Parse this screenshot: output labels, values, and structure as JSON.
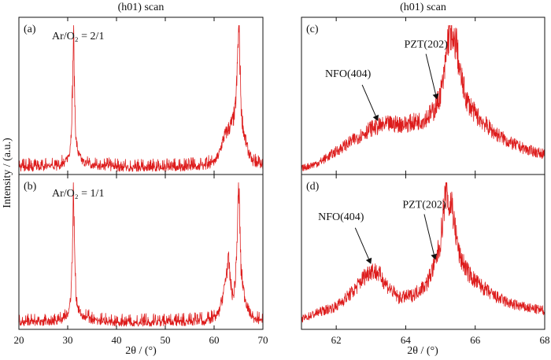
{
  "figure": {
    "ylabel": "Intensity / (a.u.)",
    "xlabel": "2θ / (°)"
  },
  "chart_data": [
    {
      "id": "a",
      "type": "line",
      "panel_label": "(a)",
      "column_title": "(h01) scan",
      "annotation": "Ar/O₂ = 2/1",
      "xlabel": "2θ / (°)",
      "ylabel": "Intensity / (a.u.)",
      "xlim": [
        20,
        70
      ],
      "x_ticks": [
        20,
        30,
        40,
        50,
        60,
        70
      ],
      "color": "#dd1c1c",
      "y_scale": "relative",
      "x": [
        20,
        28,
        29.5,
        30.3,
        30.7,
        31.0,
        31.2,
        31.4,
        31.7,
        32.2,
        33.0,
        35,
        40,
        50,
        58,
        60,
        61,
        62,
        63,
        63.8,
        64.3,
        64.7,
        64.9,
        65.1,
        65.3,
        65.6,
        66.2,
        67,
        68,
        70
      ],
      "y": [
        0.02,
        0.03,
        0.06,
        0.12,
        0.25,
        0.6,
        1.0,
        0.55,
        0.22,
        0.12,
        0.07,
        0.04,
        0.02,
        0.02,
        0.03,
        0.06,
        0.12,
        0.24,
        0.3,
        0.35,
        0.42,
        0.65,
        0.9,
        1.0,
        0.75,
        0.4,
        0.25,
        0.14,
        0.06,
        0.03
      ]
    },
    {
      "id": "b",
      "type": "line",
      "panel_label": "(b)",
      "annotation": "Ar/O₂ = 1/1",
      "xlabel": "2θ / (°)",
      "ylabel": "Intensity / (a.u.)",
      "xlim": [
        20,
        70
      ],
      "x_ticks": [
        20,
        30,
        40,
        50,
        60,
        70
      ],
      "color": "#dd1c1c",
      "y_scale": "relative",
      "x": [
        20,
        28,
        29.5,
        30.3,
        30.7,
        31.0,
        31.2,
        31.4,
        31.7,
        32.2,
        33.0,
        35,
        40,
        50,
        58,
        60,
        61,
        62,
        62.6,
        63.0,
        63.4,
        63.9,
        64.4,
        64.8,
        65.0,
        65.2,
        65.5,
        66.2,
        67,
        68,
        70
      ],
      "y": [
        0.02,
        0.03,
        0.06,
        0.12,
        0.25,
        0.6,
        1.0,
        0.55,
        0.22,
        0.12,
        0.07,
        0.04,
        0.02,
        0.02,
        0.03,
        0.05,
        0.1,
        0.25,
        0.4,
        0.46,
        0.3,
        0.2,
        0.35,
        0.7,
        1.0,
        0.85,
        0.4,
        0.22,
        0.12,
        0.05,
        0.03
      ]
    },
    {
      "id": "c",
      "type": "line",
      "panel_label": "(c)",
      "column_title": "(h01) scan",
      "xlabel": "2θ / (°)",
      "ylabel": "Intensity / (a.u.)",
      "xlim": [
        61,
        68
      ],
      "x_ticks": [
        62,
        64,
        66,
        68
      ],
      "color": "#dd1c1c",
      "y_scale": "relative",
      "x": [
        61,
        61.5,
        62,
        62.5,
        63,
        63.5,
        64,
        64.5,
        64.8,
        64.95,
        65.1,
        65.2,
        65.28,
        65.35,
        65.45,
        65.55,
        65.75,
        66,
        66.5,
        67,
        67.5,
        68
      ],
      "y": [
        0.02,
        0.06,
        0.14,
        0.22,
        0.3,
        0.33,
        0.33,
        0.36,
        0.42,
        0.5,
        0.65,
        0.9,
        1.0,
        0.86,
        0.92,
        0.7,
        0.5,
        0.4,
        0.28,
        0.2,
        0.15,
        0.12
      ],
      "annotations": [
        {
          "text": "NFO(404)",
          "x": 63.2,
          "y": 0.33
        },
        {
          "text": "PZT(202)",
          "x": 64.9,
          "y": 0.48
        }
      ]
    },
    {
      "id": "d",
      "type": "line",
      "panel_label": "(d)",
      "xlabel": "2θ / (°)",
      "ylabel": "Intensity / (a.u.)",
      "xlim": [
        61,
        68
      ],
      "x_ticks": [
        62,
        64,
        66,
        68
      ],
      "color": "#dd1c1c",
      "y_scale": "relative",
      "x": [
        61,
        61.5,
        62,
        62.5,
        62.8,
        63.0,
        63.2,
        63.5,
        63.8,
        64.2,
        64.6,
        64.85,
        65.0,
        65.1,
        65.18,
        65.25,
        65.32,
        65.4,
        65.55,
        65.8,
        66,
        66.5,
        67,
        67.5,
        68
      ],
      "y": [
        0.05,
        0.1,
        0.14,
        0.25,
        0.35,
        0.4,
        0.38,
        0.28,
        0.2,
        0.22,
        0.3,
        0.45,
        0.6,
        0.85,
        1.0,
        0.82,
        0.9,
        0.72,
        0.5,
        0.38,
        0.32,
        0.22,
        0.16,
        0.13,
        0.11
      ],
      "annotations": [
        {
          "text": "NFO(404)",
          "x": 63.0,
          "y": 0.42
        },
        {
          "text": "PZT(202)",
          "x": 64.85,
          "y": 0.45
        }
      ]
    }
  ]
}
